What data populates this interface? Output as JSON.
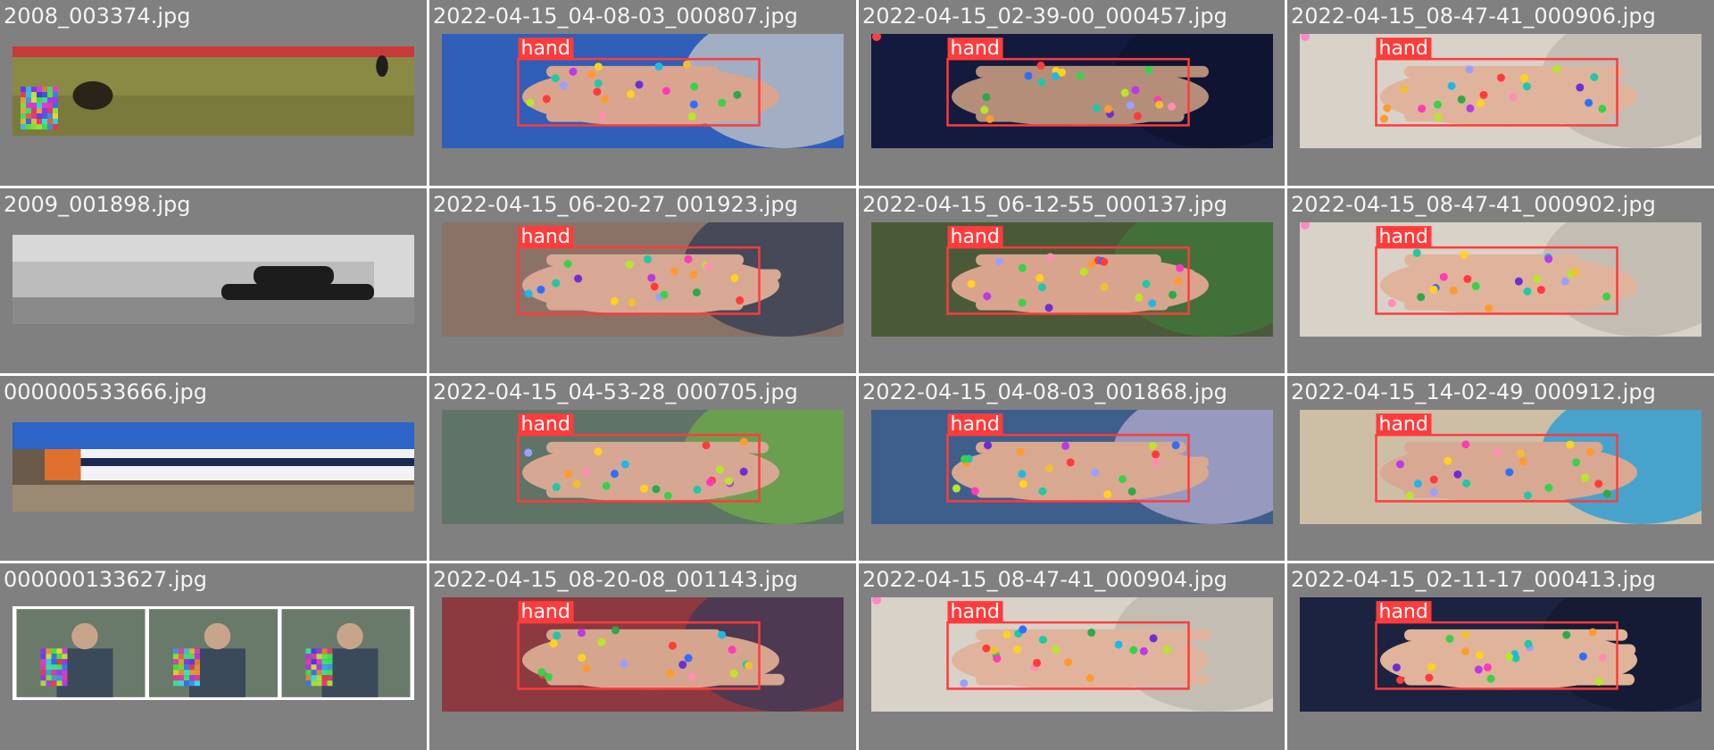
{
  "grid": {
    "label_text": "hand",
    "box_color": "#ff3b3b",
    "columns": 4,
    "rows": 4
  },
  "cells": [
    {
      "filename": "2008_003374.jpg",
      "kind": "scene",
      "scene": "dogs-grass",
      "palette": [
        "#8a8a45",
        "#6f6f38",
        "#c83a3a"
      ]
    },
    {
      "filename": "2022-04-15_04-08-03_000807.jpg",
      "kind": "hand",
      "palette": [
        "#2f5fb8",
        "#d9a58f",
        "#c8c8c8"
      ]
    },
    {
      "filename": "2022-04-15_02-39-00_000457.jpg",
      "kind": "hand",
      "palette": [
        "#141a3d",
        "#b58e7a",
        "#0e1330"
      ],
      "corner_dot": "#ff4040"
    },
    {
      "filename": "2022-04-15_08-47-41_000906.jpg",
      "kind": "hand",
      "palette": [
        "#d8d2c8",
        "#e0b49c",
        "#bcb6ac"
      ],
      "corner_dot": "#ff88c8"
    },
    {
      "filename": "2009_001898.jpg",
      "kind": "scene",
      "scene": "car-bw",
      "palette": [
        "#bcbcbc",
        "#8a8a8a",
        "#1c1c1c"
      ]
    },
    {
      "filename": "2022-04-15_06-20-27_001923.jpg",
      "kind": "hand",
      "palette": [
        "#8a7366",
        "#d8a894",
        "#2d3b54"
      ]
    },
    {
      "filename": "2022-04-15_06-12-55_000137.jpg",
      "kind": "hand",
      "palette": [
        "#4a5a38",
        "#d9a48e",
        "#3f7a3a"
      ]
    },
    {
      "filename": "2022-04-15_08-47-41_000902.jpg",
      "kind": "hand",
      "palette": [
        "#d8d2c8",
        "#e0b49c",
        "#bcb6ac"
      ],
      "corner_dot": "#ff88c8"
    },
    {
      "filename": "000000533666.jpg",
      "kind": "scene",
      "scene": "train",
      "palette": [
        "#2c64c8",
        "#e07030",
        "#9a8a74"
      ]
    },
    {
      "filename": "2022-04-15_04-53-28_000705.jpg",
      "kind": "hand",
      "palette": [
        "#5f7466",
        "#d6a894",
        "#6fae4a"
      ]
    },
    {
      "filename": "2022-04-15_04-08-03_001868.jpg",
      "kind": "hand",
      "palette": [
        "#3e5e8c",
        "#d9a890",
        "#b6aed0"
      ]
    },
    {
      "filename": "2022-04-15_14-02-49_000912.jpg",
      "kind": "hand",
      "palette": [
        "#cdbfa6",
        "#d9a892",
        "#1a9ad8"
      ]
    },
    {
      "filename": "000000133627.jpg",
      "kind": "scene",
      "scene": "photo-strip",
      "palette": [
        "#ffffff",
        "#3a4a5a",
        "#c8a58a"
      ]
    },
    {
      "filename": "2022-04-15_08-20-08_001143.jpg",
      "kind": "hand",
      "palette": [
        "#8c3a40",
        "#d6a58e",
        "#3a3a58"
      ]
    },
    {
      "filename": "2022-04-15_08-47-41_000904.jpg",
      "kind": "hand",
      "palette": [
        "#d8d2c8",
        "#e0b49c",
        "#bcb6ac"
      ],
      "corner_dot": "#ff88c8"
    },
    {
      "filename": "2022-04-15_02-11-17_000413.jpg",
      "kind": "hand",
      "palette": [
        "#1b2340",
        "#e0b49a",
        "#141a30"
      ]
    }
  ]
}
